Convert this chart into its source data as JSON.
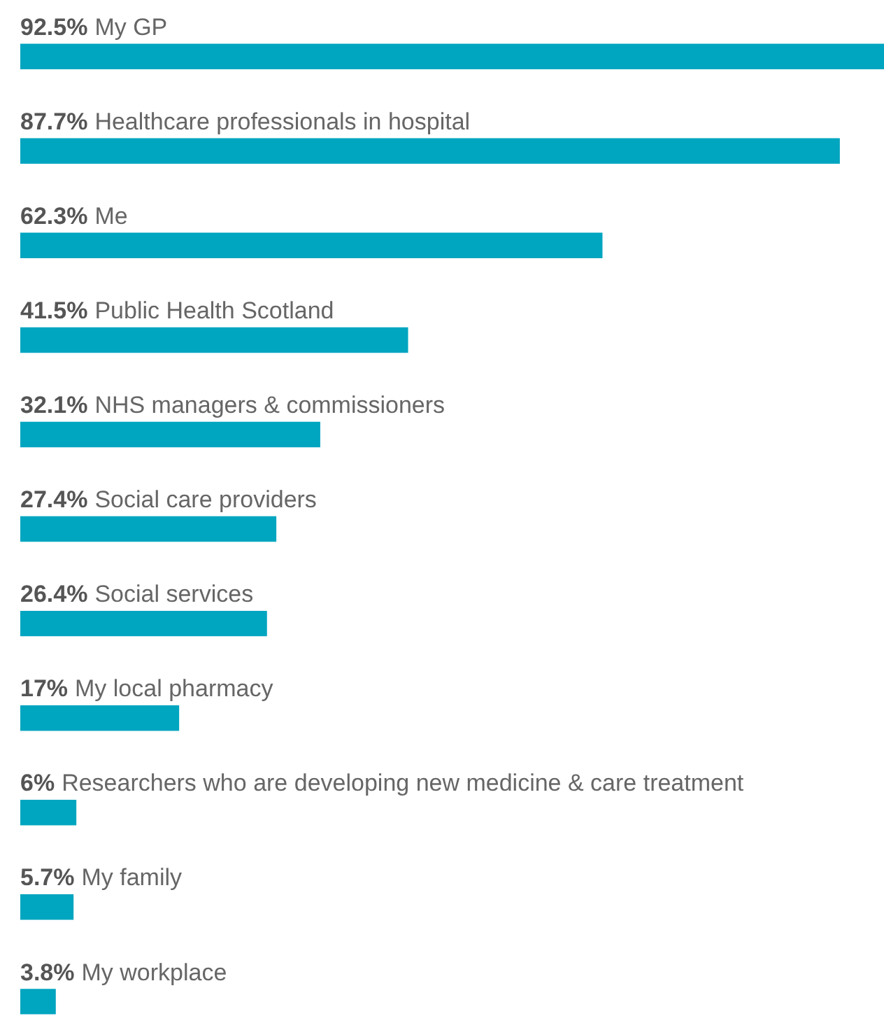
{
  "chart_data": {
    "type": "bar",
    "orientation": "horizontal",
    "categories": [
      "My GP",
      "Healthcare professionals in hospital",
      "Me",
      "Public Health Scotland",
      "NHS managers & commissioners",
      "Social care providers",
      "Social services",
      "My local pharmacy",
      "Researchers who are developing new medicine & care treatment",
      "My family",
      "My workplace"
    ],
    "values": [
      92.5,
      87.7,
      62.3,
      41.5,
      32.1,
      27.4,
      26.4,
      17,
      6,
      5.7,
      3.8
    ],
    "value_labels": [
      "92.5%",
      "87.7%",
      "62.3%",
      "41.5%",
      "32.1%",
      "27.4%",
      "26.4%",
      "17%",
      "6%",
      "5.7%",
      "3.8%"
    ],
    "color": "#00a5c0",
    "grid": false
  }
}
